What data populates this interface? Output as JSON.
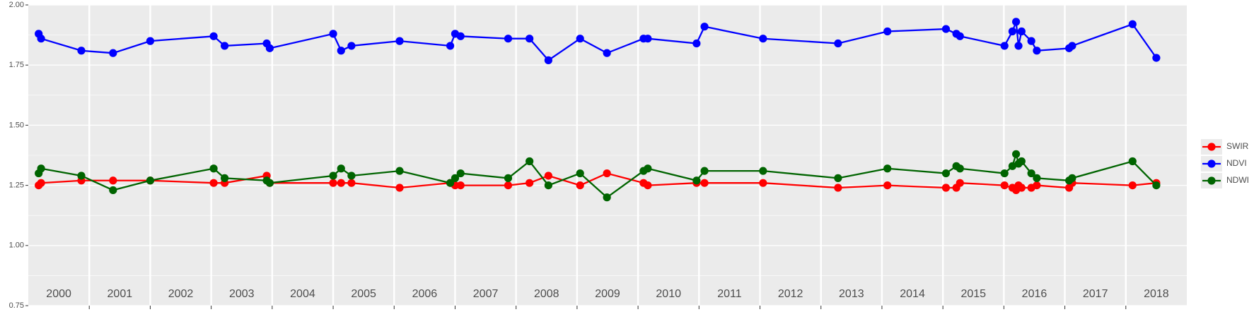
{
  "chart_data": {
    "type": "line",
    "x": [
      2000.17,
      2000.21,
      2000.87,
      2001.39,
      2002.0,
      2003.04,
      2003.22,
      2003.91,
      2003.96,
      2005.0,
      2005.13,
      2005.3,
      2006.09,
      2006.92,
      2007.0,
      2007.09,
      2007.87,
      2008.22,
      2008.53,
      2009.05,
      2009.49,
      2010.09,
      2010.16,
      2010.96,
      2011.09,
      2012.05,
      2013.28,
      2014.09,
      2015.05,
      2015.22,
      2015.28,
      2016.01,
      2016.14,
      2016.2,
      2016.24,
      2016.29,
      2016.45,
      2016.54,
      2017.07,
      2017.12,
      2018.11,
      2018.5
    ],
    "series": [
      {
        "name": "SWIR",
        "color": "#ff0000",
        "values": [
          1.25,
          1.26,
          1.27,
          1.27,
          1.27,
          1.26,
          1.26,
          1.29,
          1.26,
          1.26,
          1.26,
          1.26,
          1.24,
          1.26,
          1.25,
          1.25,
          1.25,
          1.26,
          1.29,
          1.25,
          1.3,
          1.26,
          1.25,
          1.26,
          1.26,
          1.26,
          1.24,
          1.25,
          1.24,
          1.24,
          1.26,
          1.25,
          1.24,
          1.23,
          1.25,
          1.24,
          1.24,
          1.25,
          1.24,
          1.26,
          1.25,
          1.26
        ]
      },
      {
        "name": "NDVI",
        "color": "#0000ff",
        "values": [
          1.88,
          1.86,
          1.81,
          1.8,
          1.85,
          1.87,
          1.83,
          1.84,
          1.82,
          1.88,
          1.81,
          1.83,
          1.85,
          1.83,
          1.88,
          1.87,
          1.86,
          1.86,
          1.77,
          1.86,
          1.8,
          1.86,
          1.86,
          1.84,
          1.91,
          1.86,
          1.84,
          1.89,
          1.9,
          1.88,
          1.87,
          1.83,
          1.89,
          1.93,
          1.83,
          1.89,
          1.85,
          1.81,
          1.82,
          1.83,
          1.92,
          1.78
        ]
      },
      {
        "name": "NDWI",
        "color": "#006400",
        "values": [
          1.3,
          1.32,
          1.29,
          1.23,
          1.27,
          1.32,
          1.28,
          1.27,
          1.26,
          1.29,
          1.32,
          1.29,
          1.31,
          1.26,
          1.28,
          1.3,
          1.28,
          1.35,
          1.25,
          1.3,
          1.2,
          1.31,
          1.32,
          1.27,
          1.31,
          1.31,
          1.28,
          1.32,
          1.3,
          1.33,
          1.32,
          1.3,
          1.33,
          1.38,
          1.34,
          1.35,
          1.3,
          1.28,
          1.27,
          1.28,
          1.35,
          1.25
        ]
      }
    ],
    "xlim": [
      2000,
      2019
    ],
    "xticks": [
      2001,
      2002,
      2003,
      2004,
      2005,
      2006,
      2007,
      2008,
      2009,
      2010,
      2011,
      2012,
      2013,
      2014,
      2015,
      2016,
      2017,
      2018
    ],
    "year_labels": [
      "2000",
      "2001",
      "2002",
      "2003",
      "2004",
      "2005",
      "2006",
      "2007",
      "2008",
      "2009",
      "2010",
      "2011",
      "2012",
      "2013",
      "2014",
      "2015",
      "2016",
      "2017",
      "2018"
    ],
    "ylim": [
      0.75,
      2.0
    ],
    "yticks": [
      0.75,
      {
        "value": 1.0,
        "label": "1.00"
      },
      1.25,
      {
        "value": 1.5,
        "label": "1.50"
      },
      1.75,
      {
        "value": 2.0,
        "label": "2.00"
      }
    ],
    "grid": true,
    "legend": "right"
  }
}
